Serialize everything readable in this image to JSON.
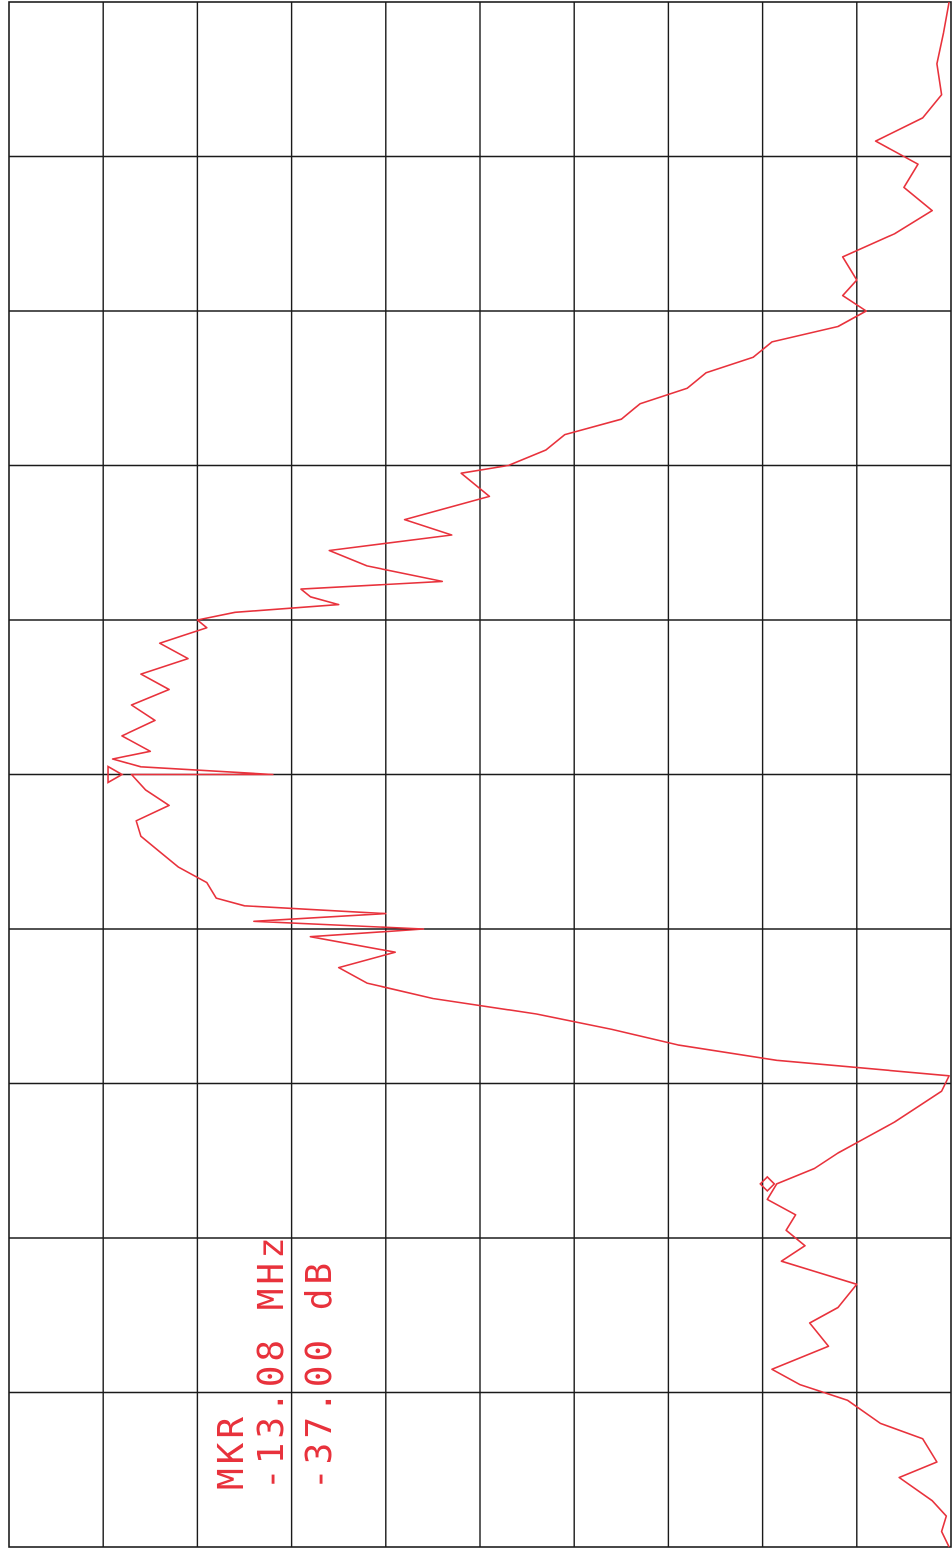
{
  "chart_data": {
    "type": "line",
    "title": "",
    "orientation": "rotated-90-clockwise",
    "grid": true,
    "grid_divisions": {
      "horizontal": 10,
      "vertical": 10
    },
    "x_axis": {
      "label": "",
      "range_div": [
        0,
        10
      ]
    },
    "y_axis": {
      "label": "",
      "range_div": [
        0,
        10
      ]
    },
    "trace_color": "#e8323c",
    "grid_color": "#1a1a1a",
    "marker_text": {
      "label": "MKR",
      "frequency": "-13.08 MHz",
      "level": "-37.00 dB"
    },
    "markers": [
      {
        "type": "delta-marker",
        "x": 5.0,
        "y": 8.8
      },
      {
        "type": "diamond-marker",
        "x": 2.35,
        "y": 1.95
      }
    ],
    "series": [
      {
        "x": [
          0.0,
          0.1,
          0.2,
          0.3,
          0.45,
          0.55,
          0.7,
          0.8,
          0.95,
          1.05,
          1.15,
          1.3,
          1.45,
          1.55,
          1.7,
          1.85,
          1.95,
          2.05,
          2.15,
          2.25,
          2.35,
          2.45,
          2.55,
          2.65,
          2.75,
          2.85,
          2.95,
          3.05,
          3.15,
          3.25,
          3.35,
          3.45,
          3.55,
          3.65,
          3.75,
          3.85,
          3.95,
          4.0,
          4.05,
          4.1,
          4.15,
          4.2,
          4.3,
          4.4,
          4.5,
          4.6,
          4.7,
          4.8,
          4.9,
          5.0,
          5.0,
          5.05,
          5.1,
          5.15,
          5.25,
          5.35,
          5.45,
          5.55,
          5.65,
          5.75,
          5.85,
          5.95,
          6.0,
          6.05,
          6.1,
          6.15,
          6.2,
          6.25,
          6.35,
          6.45,
          6.55,
          6.65,
          6.8,
          6.95,
          7.0,
          7.1,
          7.2,
          7.3,
          7.4,
          7.5,
          7.6,
          7.7,
          7.8,
          7.9,
          8.0,
          8.1,
          8.2,
          8.35,
          8.5,
          8.65,
          8.8,
          8.95,
          9.1,
          9.25,
          9.4,
          9.6,
          9.8,
          10.0
        ],
        "y": [
          0.02,
          0.1,
          0.05,
          0.2,
          0.55,
          0.15,
          0.3,
          0.75,
          1.1,
          1.6,
          1.9,
          1.3,
          1.5,
          1.2,
          1.0,
          1.8,
          1.55,
          1.75,
          1.65,
          1.95,
          1.85,
          1.45,
          1.2,
          0.9,
          0.6,
          0.35,
          0.1,
          0.02,
          1.85,
          2.9,
          3.6,
          4.4,
          5.5,
          6.2,
          6.5,
          5.9,
          6.8,
          5.6,
          7.4,
          6.0,
          7.5,
          7.8,
          7.9,
          8.2,
          8.4,
          8.6,
          8.65,
          8.3,
          8.55,
          8.7,
          7.2,
          8.6,
          8.9,
          8.5,
          8.8,
          8.45,
          8.7,
          8.3,
          8.6,
          8.1,
          8.4,
          7.9,
          8.0,
          7.6,
          6.5,
          6.8,
          6.9,
          5.4,
          6.2,
          6.6,
          5.3,
          5.8,
          4.9,
          5.2,
          4.7,
          4.3,
          4.1,
          3.5,
          3.3,
          2.8,
          2.6,
          2.1,
          1.9,
          1.2,
          0.9,
          1.15,
          1.0,
          1.15,
          0.6,
          0.2,
          0.5,
          0.35,
          0.8,
          0.3,
          0.1,
          0.15,
          0.08,
          0.02
        ]
      }
    ]
  }
}
